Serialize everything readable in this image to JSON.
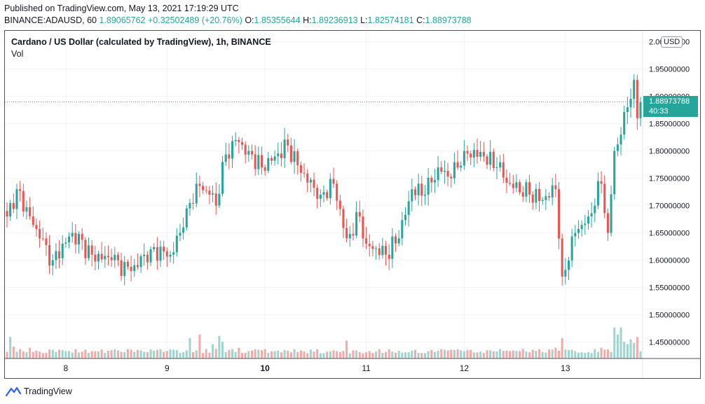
{
  "header": {
    "published": "Published on TradingView.com, May 13, 2021 17:19:29 UTC",
    "symbol_line": "BINANCE:ADAUSD, 60",
    "last_price": "1.89065762",
    "change": "+0.32502489 (+20.76%)",
    "o_label": "O:",
    "o_value": "1.85355644",
    "h_label": "H:",
    "h_value": "1.89236913",
    "l_label": "L:",
    "l_value": "1.82574181",
    "c_label": "C:",
    "c_value": "1.88973788"
  },
  "chart_title": "Cardano / US Dollar (calculated by TradingView), 1h, BINANCE",
  "vol_label": "Vol",
  "currency_button": "USD",
  "price_tag": {
    "price": "1.88973788",
    "countdown": "40:33"
  },
  "footer": {
    "brand": "TradingView"
  },
  "colors": {
    "up": "#26a69a",
    "down": "#ef5350",
    "up_vol": "#9fd4cf",
    "down_vol": "#f3a9a8"
  },
  "chart_data": {
    "type": "candlestick",
    "title": "Cardano / US Dollar (calculated by TradingView), 1h, BINANCE",
    "ylim": [
      1.42,
      2.02
    ],
    "y_ticks": [
      "2.00000000",
      "1.95000000",
      "1.90000000",
      "1.85000000",
      "1.80000000",
      "1.75000000",
      "1.70000000",
      "1.65000000",
      "1.60000000",
      "1.55000000",
      "1.50000000",
      "1.45000000"
    ],
    "y_tick_values": [
      2.0,
      1.95,
      1.9,
      1.85,
      1.8,
      1.75,
      1.7,
      1.65,
      1.6,
      1.55,
      1.5,
      1.45
    ],
    "x_ticks": [
      {
        "label": "8",
        "index": 18,
        "bold": false
      },
      {
        "label": "9",
        "index": 49,
        "bold": false
      },
      {
        "label": "10",
        "index": 79,
        "bold": true
      },
      {
        "label": "11",
        "index": 110,
        "bold": false
      },
      {
        "label": "12",
        "index": 140,
        "bold": false
      },
      {
        "label": "13",
        "index": 171,
        "bold": false
      }
    ],
    "last_price": 1.88973788,
    "anchors": [
      [
        0,
        1.68
      ],
      [
        3,
        1.73
      ],
      [
        10,
        1.64
      ],
      [
        14,
        1.6
      ],
      [
        20,
        1.65
      ],
      [
        26,
        1.61
      ],
      [
        32,
        1.6
      ],
      [
        38,
        1.58
      ],
      [
        44,
        1.62
      ],
      [
        50,
        1.61
      ],
      [
        54,
        1.66
      ],
      [
        58,
        1.74
      ],
      [
        62,
        1.72
      ],
      [
        64,
        1.7
      ],
      [
        66,
        1.78
      ],
      [
        70,
        1.82
      ],
      [
        74,
        1.8
      ],
      [
        78,
        1.77
      ],
      [
        82,
        1.79
      ],
      [
        86,
        1.81
      ],
      [
        90,
        1.76
      ],
      [
        96,
        1.72
      ],
      [
        100,
        1.74
      ],
      [
        104,
        1.64
      ],
      [
        108,
        1.68
      ],
      [
        110,
        1.63
      ],
      [
        116,
        1.61
      ],
      [
        120,
        1.64
      ],
      [
        124,
        1.73
      ],
      [
        128,
        1.72
      ],
      [
        132,
        1.77
      ],
      [
        136,
        1.75
      ],
      [
        140,
        1.8
      ],
      [
        146,
        1.79
      ],
      [
        150,
        1.77
      ],
      [
        154,
        1.74
      ],
      [
        160,
        1.72
      ],
      [
        164,
        1.71
      ],
      [
        168,
        1.73
      ],
      [
        170,
        1.57
      ],
      [
        174,
        1.65
      ],
      [
        178,
        1.68
      ],
      [
        182,
        1.74
      ],
      [
        184,
        1.65
      ],
      [
        186,
        1.8
      ],
      [
        188,
        1.83
      ],
      [
        190,
        1.88
      ],
      [
        192,
        1.93
      ],
      [
        193,
        1.86
      ],
      [
        194,
        1.889
      ]
    ],
    "volume": {
      "ylim": [
        0,
        1
      ],
      "spikes": [
        [
          1,
          0.9
        ],
        [
          2,
          0.5
        ],
        [
          7,
          0.45
        ],
        [
          56,
          0.85
        ],
        [
          59,
          1.0
        ],
        [
          63,
          0.6
        ],
        [
          65,
          0.95
        ],
        [
          66,
          0.7
        ],
        [
          71,
          0.45
        ],
        [
          104,
          0.75
        ],
        [
          168,
          0.45
        ],
        [
          170,
          0.85
        ],
        [
          182,
          0.45
        ],
        [
          186,
          1.3
        ],
        [
          187,
          1.0
        ],
        [
          188,
          1.3
        ],
        [
          189,
          0.7
        ],
        [
          190,
          0.6
        ],
        [
          191,
          0.8
        ],
        [
          192,
          0.65
        ],
        [
          193,
          0.9
        ],
        [
          194,
          0.3
        ]
      ]
    }
  }
}
